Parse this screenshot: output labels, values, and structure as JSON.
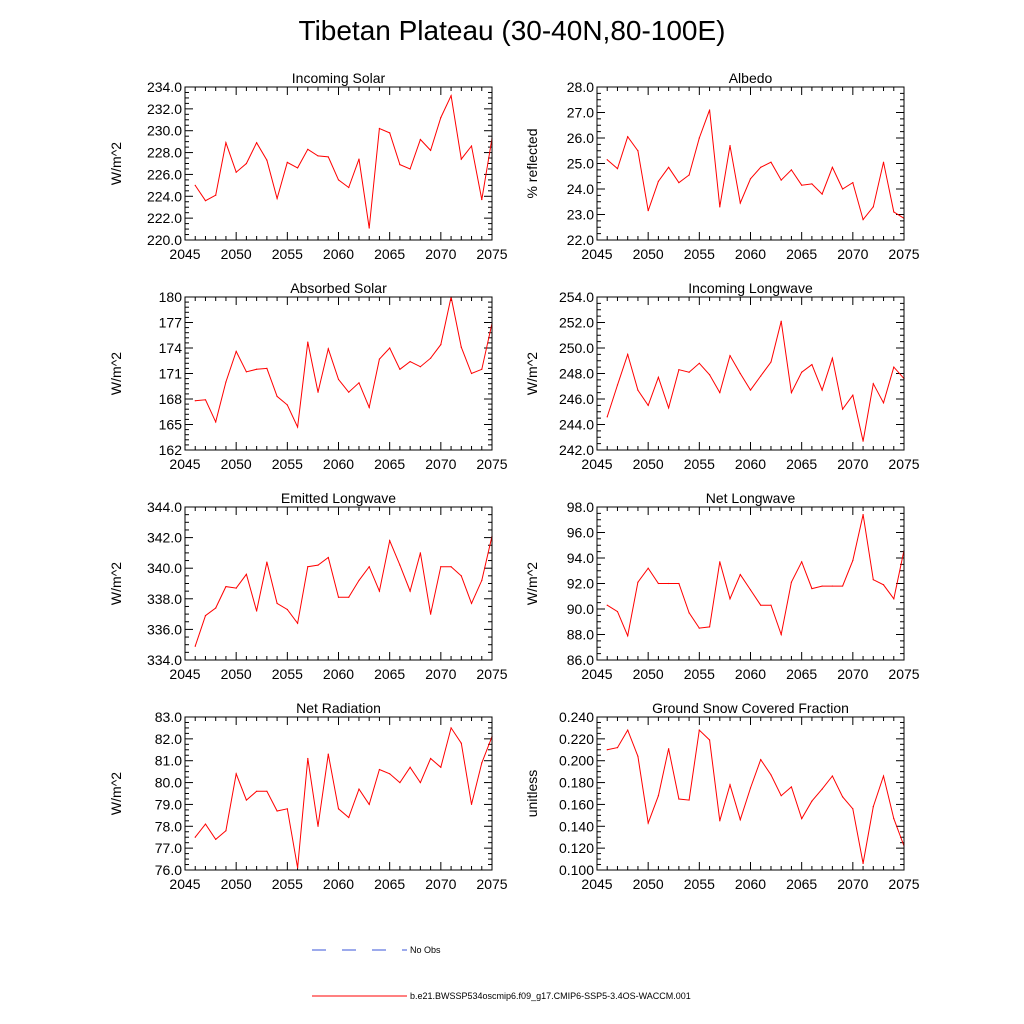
{
  "figure": {
    "title": "Tibetan Plateau (30-40N,80-100E)"
  },
  "legend": {
    "entries": [
      {
        "label": "No Obs",
        "color": "#3a55d8",
        "style": "dashed"
      },
      {
        "label": "b.e21.BWSSP534oscmip6.f09_g17.CMIP6-SSP5-3.4OS-WACCM.001",
        "color": "#ff0000",
        "style": "solid"
      }
    ]
  },
  "chart_data": [
    {
      "type": "line",
      "title": "Incoming Solar",
      "xlabel": "",
      "ylabel": "W/m^2",
      "xlim": [
        2045,
        2075
      ],
      "ylim": [
        220,
        234
      ],
      "x_ticks": [
        2045,
        2050,
        2055,
        2060,
        2065,
        2070,
        2075
      ],
      "x_tick_labels": [
        "2045",
        "2050",
        "2055",
        "2060",
        "2065",
        "2070",
        "2075"
      ],
      "y_ticks": [
        220,
        222,
        224,
        226,
        228,
        230,
        232,
        234
      ],
      "y_tick_labels": [
        "220.0",
        "222.0",
        "224.0",
        "226.0",
        "228.0",
        "230.0",
        "232.0",
        "234.0"
      ],
      "minor_per_major": 4,
      "color": "#ff0000",
      "x": [
        2046,
        2047,
        2048,
        2049,
        2050,
        2051,
        2052,
        2053,
        2054,
        2055,
        2056,
        2057,
        2058,
        2059,
        2060,
        2061,
        2062,
        2063,
        2064,
        2065,
        2066,
        2067,
        2068,
        2069,
        2070,
        2071,
        2072,
        2073,
        2074,
        2075
      ],
      "values": [
        225.0,
        223.6,
        224.1,
        228.9,
        226.2,
        227.0,
        228.9,
        227.3,
        223.8,
        227.1,
        226.6,
        228.3,
        227.7,
        227.6,
        225.5,
        224.8,
        227.4,
        221.1,
        230.2,
        229.8,
        226.9,
        226.5,
        229.2,
        228.2,
        231.2,
        233.2,
        227.4,
        228.6,
        223.7,
        229.3
      ]
    },
    {
      "type": "line",
      "title": "Albedo",
      "xlabel": "",
      "ylabel": "% reflected",
      "xlim": [
        2045,
        2075
      ],
      "ylim": [
        22,
        28
      ],
      "x_ticks": [
        2045,
        2050,
        2055,
        2060,
        2065,
        2070,
        2075
      ],
      "x_tick_labels": [
        "2045",
        "2050",
        "2055",
        "2060",
        "2065",
        "2070",
        "2075"
      ],
      "y_ticks": [
        22,
        23,
        24,
        25,
        26,
        27,
        28
      ],
      "y_tick_labels": [
        "22.0",
        "23.0",
        "24.0",
        "25.0",
        "26.0",
        "27.0",
        "28.0"
      ],
      "minor_per_major": 4,
      "color": "#ff0000",
      "x": [
        2046,
        2047,
        2048,
        2049,
        2050,
        2051,
        2052,
        2053,
        2054,
        2055,
        2056,
        2057,
        2058,
        2059,
        2060,
        2061,
        2062,
        2063,
        2064,
        2065,
        2066,
        2067,
        2068,
        2069,
        2070,
        2071,
        2072,
        2073,
        2074,
        2075
      ],
      "values": [
        25.15,
        24.8,
        26.05,
        25.5,
        23.15,
        24.3,
        24.85,
        24.25,
        24.55,
        26.0,
        27.1,
        23.3,
        25.7,
        23.45,
        24.4,
        24.85,
        25.05,
        24.35,
        24.75,
        24.15,
        24.2,
        23.8,
        24.85,
        24.0,
        24.25,
        22.8,
        23.3,
        25.05,
        23.1,
        22.85
      ]
    },
    {
      "type": "line",
      "title": "Absorbed Solar",
      "xlabel": "",
      "ylabel": "W/m^2",
      "xlim": [
        2045,
        2075
      ],
      "ylim": [
        162,
        180
      ],
      "x_ticks": [
        2045,
        2050,
        2055,
        2060,
        2065,
        2070,
        2075
      ],
      "x_tick_labels": [
        "2045",
        "2050",
        "2055",
        "2060",
        "2065",
        "2070",
        "2075"
      ],
      "y_ticks": [
        162,
        165,
        168,
        171,
        174,
        177,
        180
      ],
      "y_tick_labels": [
        "162",
        "165",
        "168",
        "171",
        "174",
        "177",
        "180"
      ],
      "minor_per_major": 5,
      "color": "#ff0000",
      "x": [
        2046,
        2047,
        2048,
        2049,
        2050,
        2051,
        2052,
        2053,
        2054,
        2055,
        2056,
        2057,
        2058,
        2059,
        2060,
        2061,
        2062,
        2063,
        2064,
        2065,
        2066,
        2067,
        2068,
        2069,
        2070,
        2071,
        2072,
        2073,
        2074,
        2075
      ],
      "values": [
        167.8,
        167.9,
        165.3,
        170.0,
        173.6,
        171.2,
        171.5,
        171.6,
        168.3,
        167.3,
        164.7,
        174.7,
        168.8,
        173.9,
        170.3,
        168.8,
        169.9,
        167.0,
        172.7,
        174.0,
        171.5,
        172.4,
        171.8,
        172.8,
        174.4,
        180.0,
        174.1,
        171.0,
        171.5,
        176.9
      ]
    },
    {
      "type": "line",
      "title": "Incoming Longwave",
      "xlabel": "",
      "ylabel": "W/m^2",
      "xlim": [
        2045,
        2075
      ],
      "ylim": [
        242,
        254
      ],
      "x_ticks": [
        2045,
        2050,
        2055,
        2060,
        2065,
        2070,
        2075
      ],
      "x_tick_labels": [
        "2045",
        "2050",
        "2055",
        "2060",
        "2065",
        "2070",
        "2075"
      ],
      "y_ticks": [
        242,
        244,
        246,
        248,
        250,
        252,
        254
      ],
      "y_tick_labels": [
        "242.0",
        "244.0",
        "246.0",
        "248.0",
        "250.0",
        "252.0",
        "254.0"
      ],
      "minor_per_major": 4,
      "color": "#ff0000",
      "x": [
        2046,
        2047,
        2048,
        2049,
        2050,
        2051,
        2052,
        2053,
        2054,
        2055,
        2056,
        2057,
        2058,
        2059,
        2060,
        2061,
        2062,
        2063,
        2064,
        2065,
        2066,
        2067,
        2068,
        2069,
        2070,
        2071,
        2072,
        2073,
        2074,
        2075
      ],
      "values": [
        244.6,
        247.1,
        249.5,
        246.7,
        245.5,
        247.7,
        245.3,
        248.3,
        248.1,
        248.8,
        247.9,
        246.5,
        249.4,
        248.0,
        246.7,
        247.8,
        248.9,
        252.1,
        246.5,
        248.1,
        248.7,
        246.7,
        249.2,
        245.2,
        246.3,
        242.7,
        247.2,
        245.7,
        248.5,
        247.6
      ]
    },
    {
      "type": "line",
      "title": "Emitted Longwave",
      "xlabel": "",
      "ylabel": "W/m^2",
      "xlim": [
        2045,
        2075
      ],
      "ylim": [
        334,
        344
      ],
      "x_ticks": [
        2045,
        2050,
        2055,
        2060,
        2065,
        2070,
        2075
      ],
      "x_tick_labels": [
        "2045",
        "2050",
        "2055",
        "2060",
        "2065",
        "2070",
        "2075"
      ],
      "y_ticks": [
        334,
        336,
        338,
        340,
        342,
        344
      ],
      "y_tick_labels": [
        "334.0",
        "336.0",
        "338.0",
        "340.0",
        "342.0",
        "344.0"
      ],
      "minor_per_major": 4,
      "color": "#ff0000",
      "x": [
        2046,
        2047,
        2048,
        2049,
        2050,
        2051,
        2052,
        2053,
        2054,
        2055,
        2056,
        2057,
        2058,
        2059,
        2060,
        2061,
        2062,
        2063,
        2064,
        2065,
        2066,
        2067,
        2068,
        2069,
        2070,
        2071,
        2072,
        2073,
        2074,
        2075
      ],
      "values": [
        334.9,
        336.9,
        337.4,
        338.8,
        338.7,
        339.6,
        337.2,
        340.4,
        337.7,
        337.3,
        336.4,
        340.1,
        340.2,
        340.7,
        338.1,
        338.1,
        339.2,
        340.1,
        338.5,
        341.8,
        340.2,
        338.5,
        341.0,
        337.0,
        340.1,
        340.1,
        339.5,
        337.7,
        339.2,
        342.1
      ]
    },
    {
      "type": "line",
      "title": "Net Longwave",
      "xlabel": "",
      "ylabel": "W/m^2",
      "xlim": [
        2045,
        2075
      ],
      "ylim": [
        86,
        98
      ],
      "x_ticks": [
        2045,
        2050,
        2055,
        2060,
        2065,
        2070,
        2075
      ],
      "x_tick_labels": [
        "2045",
        "2050",
        "2055",
        "2060",
        "2065",
        "2070",
        "2075"
      ],
      "y_ticks": [
        86,
        88,
        90,
        92,
        94,
        96,
        98
      ],
      "y_tick_labels": [
        "86.0",
        "88.0",
        "90.0",
        "92.0",
        "94.0",
        "96.0",
        "98.0"
      ],
      "minor_per_major": 4,
      "color": "#ff0000",
      "x": [
        2046,
        2047,
        2048,
        2049,
        2050,
        2051,
        2052,
        2053,
        2054,
        2055,
        2056,
        2057,
        2058,
        2059,
        2060,
        2061,
        2062,
        2063,
        2064,
        2065,
        2066,
        2067,
        2068,
        2069,
        2070,
        2071,
        2072,
        2073,
        2074,
        2075
      ],
      "values": [
        90.3,
        89.8,
        87.9,
        92.1,
        93.2,
        92.0,
        92.0,
        92.0,
        89.7,
        88.5,
        88.6,
        93.7,
        90.8,
        92.7,
        91.5,
        90.3,
        90.3,
        88.0,
        92.1,
        93.7,
        91.6,
        91.8,
        91.8,
        91.8,
        93.8,
        97.4,
        92.3,
        91.9,
        90.8,
        94.6
      ]
    },
    {
      "type": "line",
      "title": "Net Radiation",
      "xlabel": "",
      "ylabel": "W/m^2",
      "xlim": [
        2045,
        2075
      ],
      "ylim": [
        76,
        83
      ],
      "x_ticks": [
        2045,
        2050,
        2055,
        2060,
        2065,
        2070,
        2075
      ],
      "x_tick_labels": [
        "2045",
        "2050",
        "2055",
        "2060",
        "2065",
        "2070",
        "2075"
      ],
      "y_ticks": [
        76,
        77,
        78,
        79,
        80,
        81,
        82,
        83
      ],
      "y_tick_labels": [
        "76.0",
        "77.0",
        "78.0",
        "79.0",
        "80.0",
        "81.0",
        "82.0",
        "83.0"
      ],
      "minor_per_major": 4,
      "color": "#ff0000",
      "x": [
        2046,
        2047,
        2048,
        2049,
        2050,
        2051,
        2052,
        2053,
        2054,
        2055,
        2056,
        2057,
        2058,
        2059,
        2060,
        2061,
        2062,
        2063,
        2064,
        2065,
        2066,
        2067,
        2068,
        2069,
        2070,
        2071,
        2072,
        2073,
        2074,
        2075
      ],
      "values": [
        77.5,
        78.1,
        77.4,
        77.8,
        80.4,
        79.2,
        79.6,
        79.6,
        78.7,
        78.8,
        76.1,
        81.1,
        78.0,
        81.3,
        78.8,
        78.4,
        79.7,
        79.0,
        80.6,
        80.4,
        80.0,
        80.7,
        80.0,
        81.1,
        80.7,
        82.5,
        81.8,
        79.0,
        80.9,
        82.1
      ]
    },
    {
      "type": "line",
      "title": "Ground Snow Covered Fraction",
      "xlabel": "",
      "ylabel": "unitless",
      "xlim": [
        2045,
        2075
      ],
      "ylim": [
        0.1,
        0.24
      ],
      "x_ticks": [
        2045,
        2050,
        2055,
        2060,
        2065,
        2070,
        2075
      ],
      "x_tick_labels": [
        "2045",
        "2050",
        "2055",
        "2060",
        "2065",
        "2070",
        "2075"
      ],
      "y_ticks": [
        0.1,
        0.12,
        0.14,
        0.16,
        0.18,
        0.2,
        0.22,
        0.24
      ],
      "y_tick_labels": [
        "0.100",
        "0.120",
        "0.140",
        "0.160",
        "0.180",
        "0.200",
        "0.220",
        "0.240"
      ],
      "minor_per_major": 4,
      "color": "#ff0000",
      "x": [
        2046,
        2047,
        2048,
        2049,
        2050,
        2051,
        2052,
        2053,
        2054,
        2055,
        2056,
        2057,
        2058,
        2059,
        2060,
        2061,
        2062,
        2063,
        2064,
        2065,
        2066,
        2067,
        2068,
        2069,
        2070,
        2071,
        2072,
        2073,
        2074,
        2075
      ],
      "values": [
        0.21,
        0.212,
        0.228,
        0.204,
        0.143,
        0.168,
        0.211,
        0.165,
        0.164,
        0.228,
        0.219,
        0.145,
        0.178,
        0.146,
        0.175,
        0.201,
        0.187,
        0.168,
        0.176,
        0.147,
        0.163,
        0.174,
        0.186,
        0.167,
        0.156,
        0.106,
        0.158,
        0.186,
        0.147,
        0.122
      ]
    }
  ]
}
